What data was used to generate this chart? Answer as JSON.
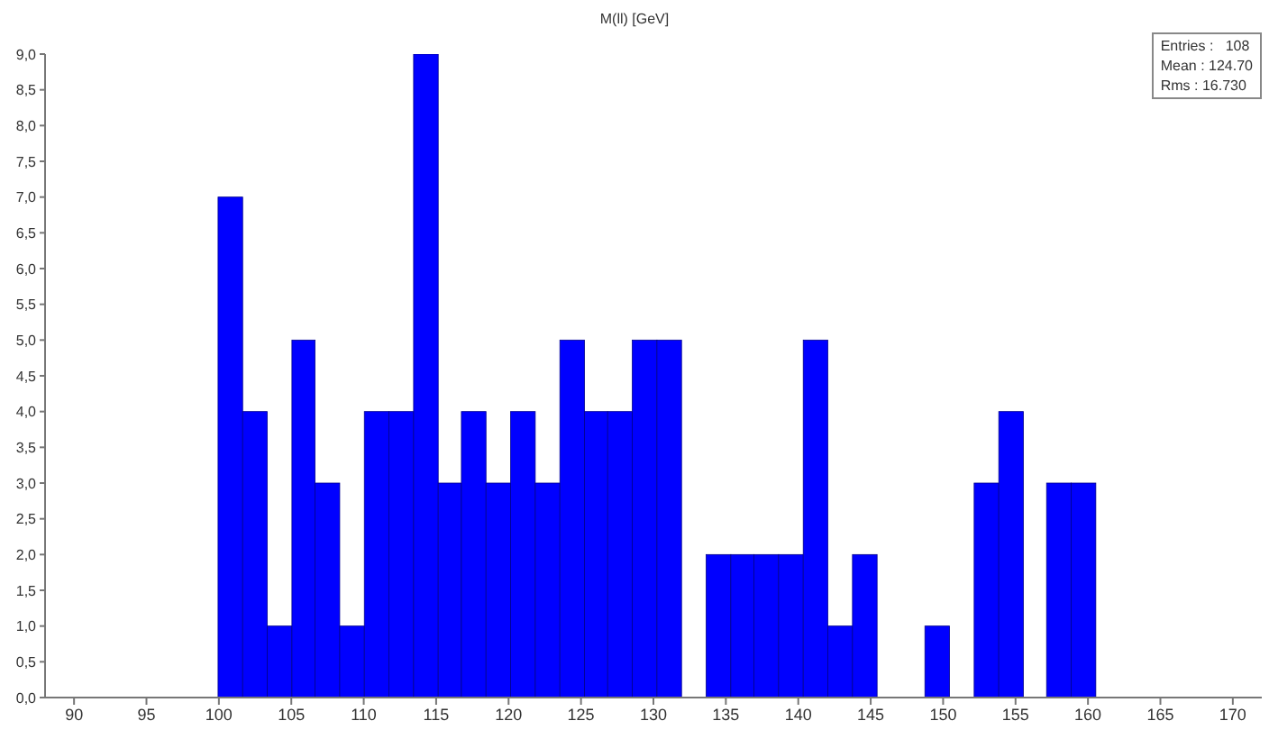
{
  "chart_data": {
    "type": "histogram",
    "title": "M(ll) [GeV]",
    "bins": [
      99.9,
      101.6,
      103.3,
      105.0,
      106.6,
      108.3,
      110.0,
      111.7,
      113.4,
      115.1,
      116.7,
      118.4,
      120.1,
      121.8,
      123.5,
      125.2,
      126.8,
      128.5,
      130.2,
      131.9,
      133.6,
      135.3,
      136.9,
      138.6,
      140.3,
      142.0,
      143.7,
      145.4,
      148.7,
      150.4,
      152.1,
      153.8,
      155.5,
      157.1,
      158.8,
      160.5
    ],
    "values": [
      7,
      4,
      1,
      5,
      3,
      1,
      4,
      4,
      9,
      3,
      4,
      3,
      4,
      3,
      5,
      4,
      4,
      5,
      5,
      0,
      2,
      2,
      2,
      2,
      5,
      1,
      2,
      0,
      1,
      0,
      3,
      4,
      0,
      3,
      3
    ],
    "color": "#0000ff",
    "xlim": [
      88,
      172
    ],
    "xticks": [
      90,
      95,
      100,
      105,
      110,
      115,
      120,
      125,
      130,
      135,
      140,
      145,
      150,
      155,
      160,
      165,
      170
    ],
    "ylim": [
      0,
      9
    ],
    "yticks": [
      {
        "value": 0,
        "label": "0,0"
      },
      {
        "value": 0.5,
        "label": "0,5"
      },
      {
        "value": 1,
        "label": "1,0"
      },
      {
        "value": 1.5,
        "label": "1,5"
      },
      {
        "value": 2,
        "label": "2,0"
      },
      {
        "value": 2.5,
        "label": "2,5"
      },
      {
        "value": 3,
        "label": "3,0"
      },
      {
        "value": 3.5,
        "label": "3,5"
      },
      {
        "value": 4,
        "label": "4,0"
      },
      {
        "value": 4.5,
        "label": "4,5"
      },
      {
        "value": 5,
        "label": "5,0"
      },
      {
        "value": 5.5,
        "label": "5,5"
      },
      {
        "value": 6,
        "label": "6,0"
      },
      {
        "value": 6.5,
        "label": "6,5"
      },
      {
        "value": 7,
        "label": "7,0"
      },
      {
        "value": 7.5,
        "label": "7,5"
      },
      {
        "value": 8,
        "label": "8,0"
      },
      {
        "value": 8.5,
        "label": "8,5"
      },
      {
        "value": 9,
        "label": "9,0"
      }
    ],
    "grid": false,
    "annotations": [
      "Entries :   108",
      "Mean : 124.70",
      "Rms : 16.730"
    ]
  }
}
